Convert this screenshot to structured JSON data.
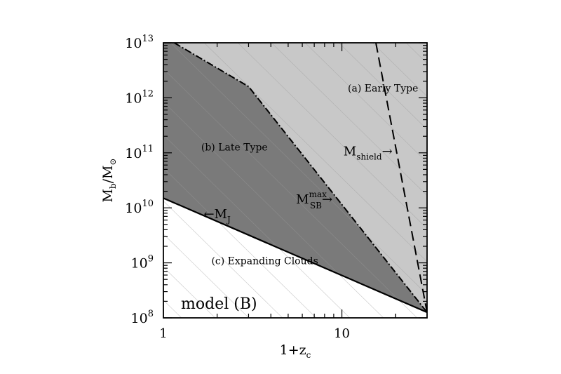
{
  "chart_data": {
    "type": "area",
    "title": "",
    "xlabel": {
      "base": "1+z",
      "sub": "c"
    },
    "ylabel": {
      "base": "M",
      "sub1": "b",
      "mid": "/M",
      "sub2": "⊙"
    },
    "x_scale": "log",
    "y_scale": "log",
    "xlim": [
      1,
      30
    ],
    "ylim": [
      100000000.0,
      10000000000000.0
    ],
    "x_ticks": [
      {
        "value": 1,
        "label": "1"
      },
      {
        "value": 10,
        "label": "10"
      }
    ],
    "y_ticks": [
      {
        "value": 100000000.0,
        "base": "10",
        "exp": "8"
      },
      {
        "value": 1000000000.0,
        "base": "10",
        "exp": "9"
      },
      {
        "value": 10000000000.0,
        "base": "10",
        "exp": "10"
      },
      {
        "value": 100000000000.0,
        "base": "10",
        "exp": "11"
      },
      {
        "value": 1000000000000.0,
        "base": "10",
        "exp": "12"
      },
      {
        "value": 10000000000000.0,
        "base": "10",
        "exp": "13"
      }
    ],
    "series": [
      {
        "name": "M_J",
        "style": "solid",
        "points": [
          [
            1,
            15000000000.0
          ],
          [
            30,
            126000000.0
          ]
        ]
      },
      {
        "name": "M_SB^max",
        "style": "dash-dot",
        "points": [
          [
            1.15,
            10000000000000.0
          ],
          [
            3,
            1600000000000.0
          ],
          [
            30,
            126000000.0
          ]
        ]
      },
      {
        "name": "M_shield",
        "style": "dashed",
        "points": [
          [
            15.5,
            10000000000000.0
          ],
          [
            30,
            126000000.0
          ]
        ]
      }
    ],
    "regions": [
      {
        "label": "(a) Early Type",
        "x": 17,
        "y": 1300000000000.0,
        "color": "#c8c8c8"
      },
      {
        "label": "(b) Late Type",
        "x": 2.5,
        "y": 110000000000.0,
        "color": "#7a7a7a"
      },
      {
        "label": "(c) Expanding Clouds",
        "x": 3.7,
        "y": 950000000.0,
        "color": "#ffffff"
      }
    ],
    "curve_labels": [
      {
        "text_pre": "",
        "base": "M",
        "sub": "shield",
        "sup": "",
        "arrow_after": "→",
        "arrow_before": "",
        "x": 14.0,
        "y": 90000000000.0
      },
      {
        "text_pre": "",
        "base": "M",
        "sub": "SB",
        "sup": "max",
        "arrow_after": "→",
        "arrow_before": "",
        "x": 7.0,
        "y": 12000000000.0
      },
      {
        "text_pre": "",
        "base": "M",
        "sub": "J",
        "sup": "",
        "arrow_after": "",
        "arrow_before": "←",
        "x": 2.0,
        "y": 6500000000.0
      }
    ],
    "annotation": "model (B)",
    "grid": false,
    "legend": "none"
  }
}
